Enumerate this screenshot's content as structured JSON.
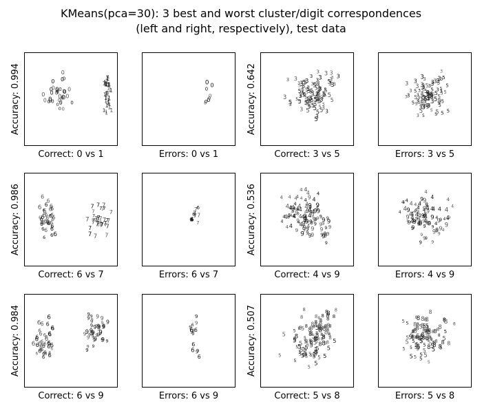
{
  "chart_data": {
    "type": "scatter",
    "title_line1": "KMeans(pca=30): 3 best and worst cluster/digit correspondences",
    "title_line2": "(left and right, respectively), test data",
    "panels": [
      {
        "xlabel": "Correct: 0 vs 1",
        "ylabel": "Accuracy: 0.994",
        "glyphs": [
          "0",
          "1"
        ]
      },
      {
        "xlabel": "Errors: 0 vs 1",
        "ylabel": "",
        "glyphs": [
          "0",
          "1"
        ]
      },
      {
        "xlabel": "Correct: 3 vs 5",
        "ylabel": "Accuracy: 0.642",
        "glyphs": [
          "3",
          "5"
        ]
      },
      {
        "xlabel": "Errors: 3 vs 5",
        "ylabel": "",
        "glyphs": [
          "3",
          "5"
        ]
      },
      {
        "xlabel": "Correct: 6 vs 7",
        "ylabel": "Accuracy: 0.986",
        "glyphs": [
          "6",
          "7"
        ]
      },
      {
        "xlabel": "Errors: 6 vs 7",
        "ylabel": "",
        "glyphs": [
          "6",
          "7"
        ]
      },
      {
        "xlabel": "Correct: 4 vs 9",
        "ylabel": "Accuracy: 0.536",
        "glyphs": [
          "4",
          "9"
        ]
      },
      {
        "xlabel": "Errors: 4 vs 9",
        "ylabel": "",
        "glyphs": [
          "4",
          "9"
        ]
      },
      {
        "xlabel": "Correct: 6 vs 9",
        "ylabel": "Accuracy: 0.984",
        "glyphs": [
          "6",
          "9"
        ]
      },
      {
        "xlabel": "Errors: 6 vs 9",
        "ylabel": "",
        "glyphs": [
          "6",
          "9"
        ]
      },
      {
        "xlabel": "Correct: 5 vs 8",
        "ylabel": "Accuracy: 0.507",
        "glyphs": [
          "5",
          "8"
        ]
      },
      {
        "xlabel": "Errors: 5 vs 8",
        "ylabel": "",
        "glyphs": [
          "5",
          "8"
        ]
      }
    ]
  }
}
